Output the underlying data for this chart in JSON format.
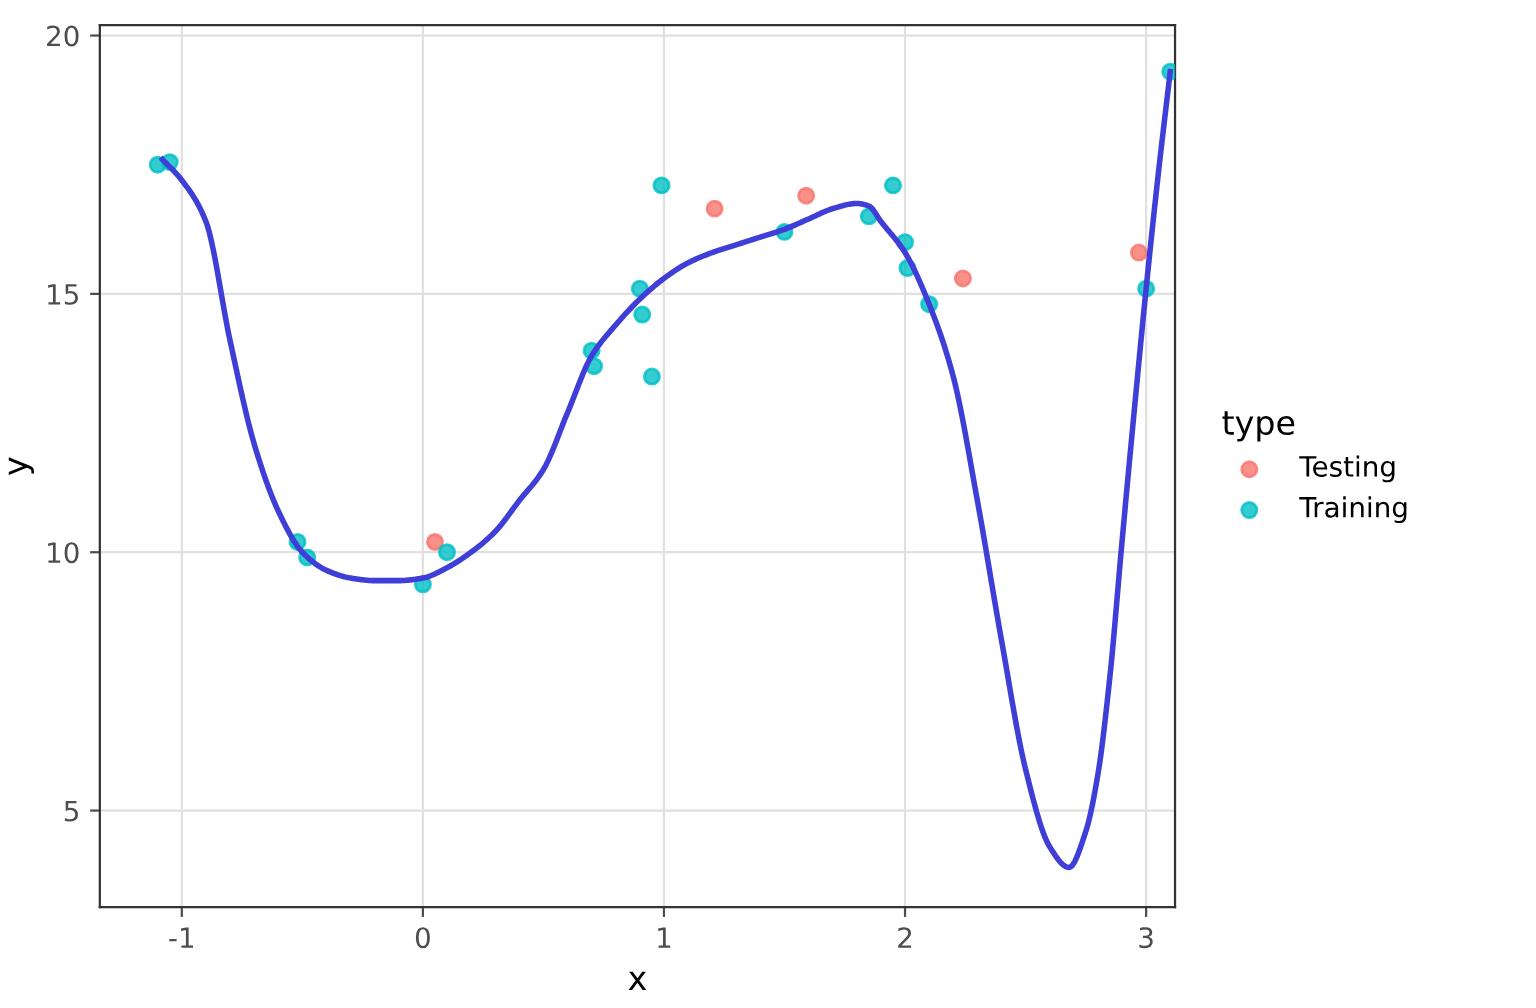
{
  "chart_data": {
    "type": "scatter",
    "xlabel": "x",
    "ylabel": "y",
    "legend_title": "type",
    "legend": "right",
    "grid": true,
    "xlim": [
      -1.34,
      3.12
    ],
    "ylim": [
      3.13,
      20.2
    ],
    "xticks": [
      -1,
      0,
      1,
      2,
      3
    ],
    "yticks": [
      5,
      10,
      15,
      20
    ],
    "series": [
      {
        "name": "Testing",
        "marker": "circle",
        "color": "#f8766d",
        "x": [
          0.05,
          1.21,
          1.59,
          2.24,
          2.97
        ],
        "values": [
          10.2,
          16.65,
          16.9,
          15.3,
          15.8
        ]
      },
      {
        "name": "Training",
        "marker": "circle",
        "color": "#00bfc4",
        "x": [
          -1.1,
          -1.05,
          -0.52,
          -0.48,
          0.0,
          0.1,
          0.7,
          0.71,
          0.9,
          0.91,
          0.95,
          0.99,
          1.5,
          1.85,
          1.95,
          2.0,
          2.01,
          2.1,
          3.0,
          3.1
        ],
        "values": [
          17.5,
          17.55,
          10.2,
          9.9,
          9.38,
          10.0,
          13.9,
          13.6,
          15.1,
          14.6,
          13.4,
          17.1,
          16.2,
          16.5,
          17.1,
          16.0,
          15.5,
          14.8,
          15.1,
          19.3
        ]
      },
      {
        "type": "line",
        "color": "#3f3fd8",
        "x": [
          -1.08,
          -1.0,
          -0.9,
          -0.8,
          -0.7,
          -0.6,
          -0.5,
          -0.4,
          -0.3,
          -0.2,
          -0.1,
          0.0,
          0.1,
          0.2,
          0.3,
          0.4,
          0.5,
          0.6,
          0.7,
          0.8,
          0.9,
          1.0,
          1.1,
          1.2,
          1.3,
          1.4,
          1.5,
          1.6,
          1.7,
          1.8,
          1.85,
          1.9,
          2.0,
          2.1,
          2.2,
          2.3,
          2.4,
          2.5,
          2.6,
          2.68,
          2.75,
          2.8,
          2.85,
          2.9,
          2.95,
          3.0,
          3.05,
          3.1
        ],
        "values": [
          17.6,
          17.2,
          16.4,
          14.1,
          12.1,
          10.8,
          10.0,
          9.65,
          9.5,
          9.45,
          9.45,
          9.5,
          9.7,
          10.0,
          10.4,
          11.0,
          11.6,
          12.7,
          13.8,
          14.4,
          14.9,
          15.3,
          15.6,
          15.8,
          15.95,
          16.1,
          16.25,
          16.45,
          16.65,
          16.75,
          16.7,
          16.4,
          15.8,
          14.8,
          13.4,
          11.0,
          8.3,
          5.8,
          4.3,
          3.9,
          4.6,
          5.7,
          7.6,
          10.2,
          12.7,
          15.1,
          17.3,
          19.3
        ]
      }
    ]
  }
}
